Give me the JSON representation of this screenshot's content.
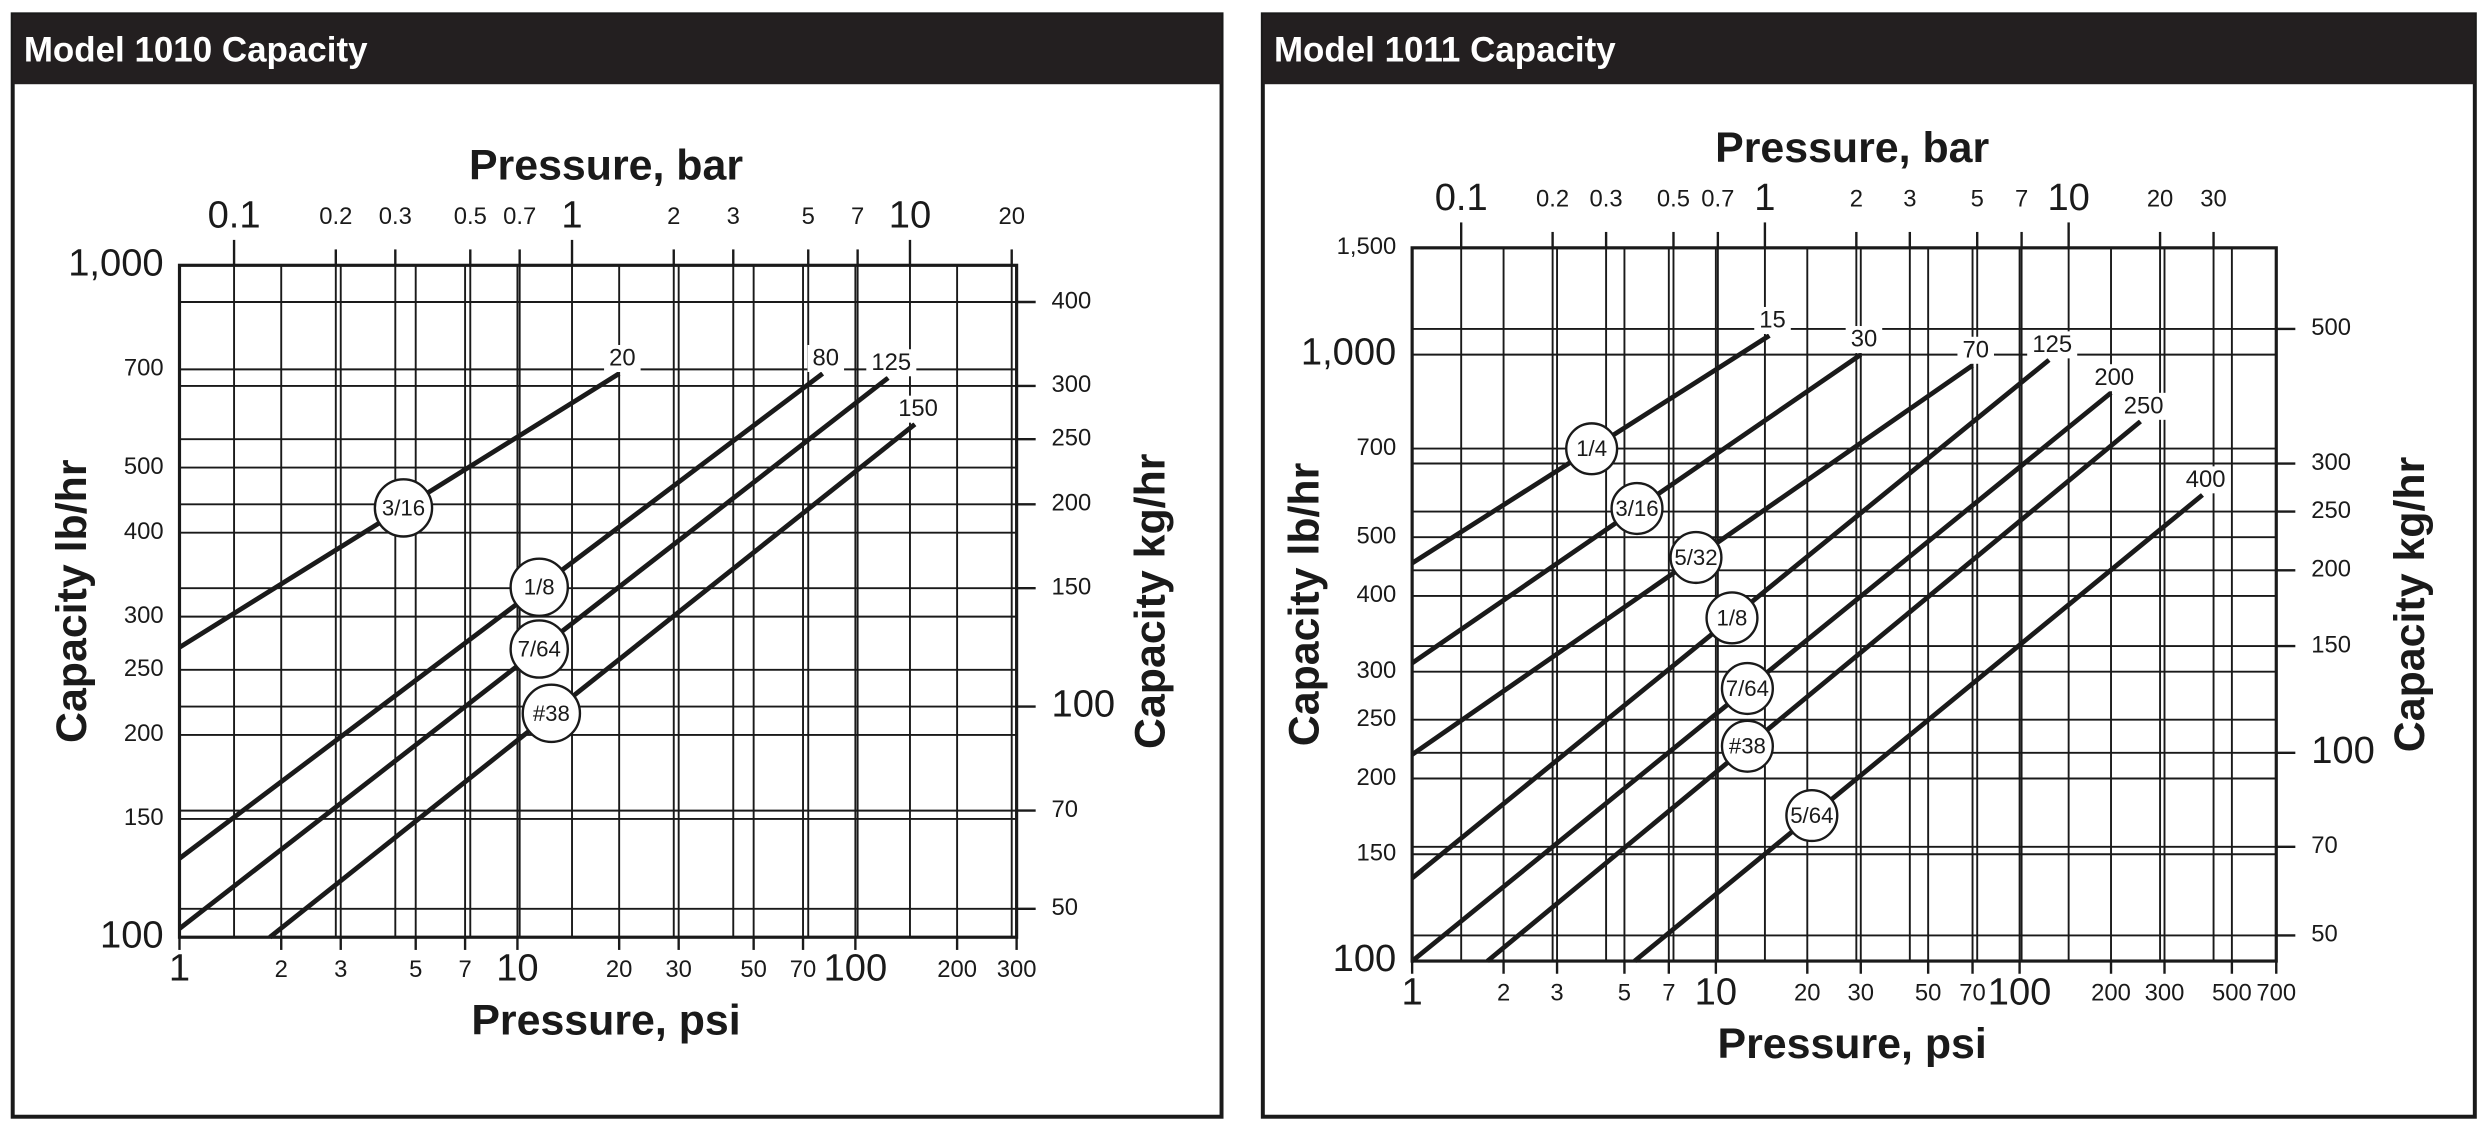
{
  "chart_data": [
    {
      "type": "line",
      "title": "Model 1010 Capacity",
      "xlabel": "Pressure, psi",
      "x2label": "Pressure, bar",
      "ylabel": "Capacity lb/hr",
      "y2label": "Capacity kg/hr",
      "xscale": "log",
      "yscale": "log",
      "grid": true,
      "xlim": [
        1,
        300
      ],
      "xticks": [
        1,
        2,
        3,
        5,
        7,
        10,
        20,
        30,
        50,
        70,
        100,
        200,
        300
      ],
      "x2lim": [
        0.06895,
        20.68
      ],
      "x2ticks": [
        0.1,
        0.2,
        0.3,
        0.5,
        0.7,
        1,
        2,
        3,
        5,
        7,
        10,
        20
      ],
      "ylim": [
        100,
        1000
      ],
      "yticks": [
        100,
        150,
        200,
        250,
        300,
        400,
        500,
        700,
        {
          "value": 1000,
          "label": "1,000"
        }
      ],
      "y2lim": [
        45.36,
        453.6
      ],
      "y2ticks": [
        50,
        70,
        100,
        150,
        200,
        250,
        300,
        400
      ],
      "series": [
        {
          "name": "3/16",
          "color": "#1a1a1a",
          "x": [
            1,
            20
          ],
          "values": [
            270,
            690
          ]
        },
        {
          "name": "1/8",
          "color": "#1a1a1a",
          "x": [
            1,
            80
          ],
          "values": [
            131,
            690
          ]
        },
        {
          "name": "7/64",
          "color": "#1a1a1a",
          "x": [
            1,
            125
          ],
          "values": [
            103,
            680
          ]
        },
        {
          "name": "#38",
          "color": "#1a1a1a",
          "x": [
            1.85,
            150
          ],
          "values": [
            100,
            580
          ]
        }
      ]
    },
    {
      "type": "line",
      "title": "Model 1011 Capacity",
      "xlabel": "Pressure, psi",
      "x2label": "Pressure, bar",
      "ylabel": "Capacity lb/hr",
      "y2label": "Capacity kg/hr",
      "xscale": "log",
      "yscale": "log",
      "grid": true,
      "xlim": [
        1,
        700
      ],
      "xticks": [
        1,
        2,
        3,
        5,
        7,
        10,
        20,
        30,
        50,
        70,
        100,
        200,
        300,
        500,
        700
      ],
      "x2lim": [
        0.06895,
        48.26
      ],
      "x2ticks": [
        0.1,
        0.2,
        0.3,
        0.5,
        0.7,
        1,
        2,
        3,
        5,
        7,
        10,
        20,
        30
      ],
      "ylim": [
        100,
        1500
      ],
      "yticks": [
        100,
        150,
        200,
        250,
        300,
        400,
        500,
        700,
        {
          "value": 1000,
          "label": "1,000"
        },
        {
          "value": 1500,
          "label": "1,500"
        }
      ],
      "y2lim": [
        45.36,
        680.4
      ],
      "y2ticks": [
        50,
        70,
        100,
        150,
        200,
        250,
        300,
        500
      ],
      "series": [
        {
          "name": "1/4",
          "color": "#1a1a1a",
          "x": [
            1,
            15
          ],
          "values": [
            453,
            1075
          ]
        },
        {
          "name": "3/16",
          "color": "#1a1a1a",
          "x": [
            1,
            30
          ],
          "values": [
            310,
            1000
          ]
        },
        {
          "name": "5/32",
          "color": "#1a1a1a",
          "x": [
            1,
            70
          ],
          "values": [
            219,
            960
          ]
        },
        {
          "name": "1/8",
          "color": "#1a1a1a",
          "x": [
            1,
            125
          ],
          "values": [
            137,
            980
          ]
        },
        {
          "name": "7/64",
          "color": "#1a1a1a",
          "x": [
            1,
            200
          ],
          "values": [
            100,
            865
          ]
        },
        {
          "name": "#38",
          "color": "#1a1a1a",
          "x": [
            1.77,
            250
          ],
          "values": [
            100,
            776
          ]
        },
        {
          "name": "5/64",
          "color": "#1a1a1a",
          "x": [
            5.4,
            400
          ],
          "values": [
            100,
            587
          ]
        }
      ]
    }
  ]
}
